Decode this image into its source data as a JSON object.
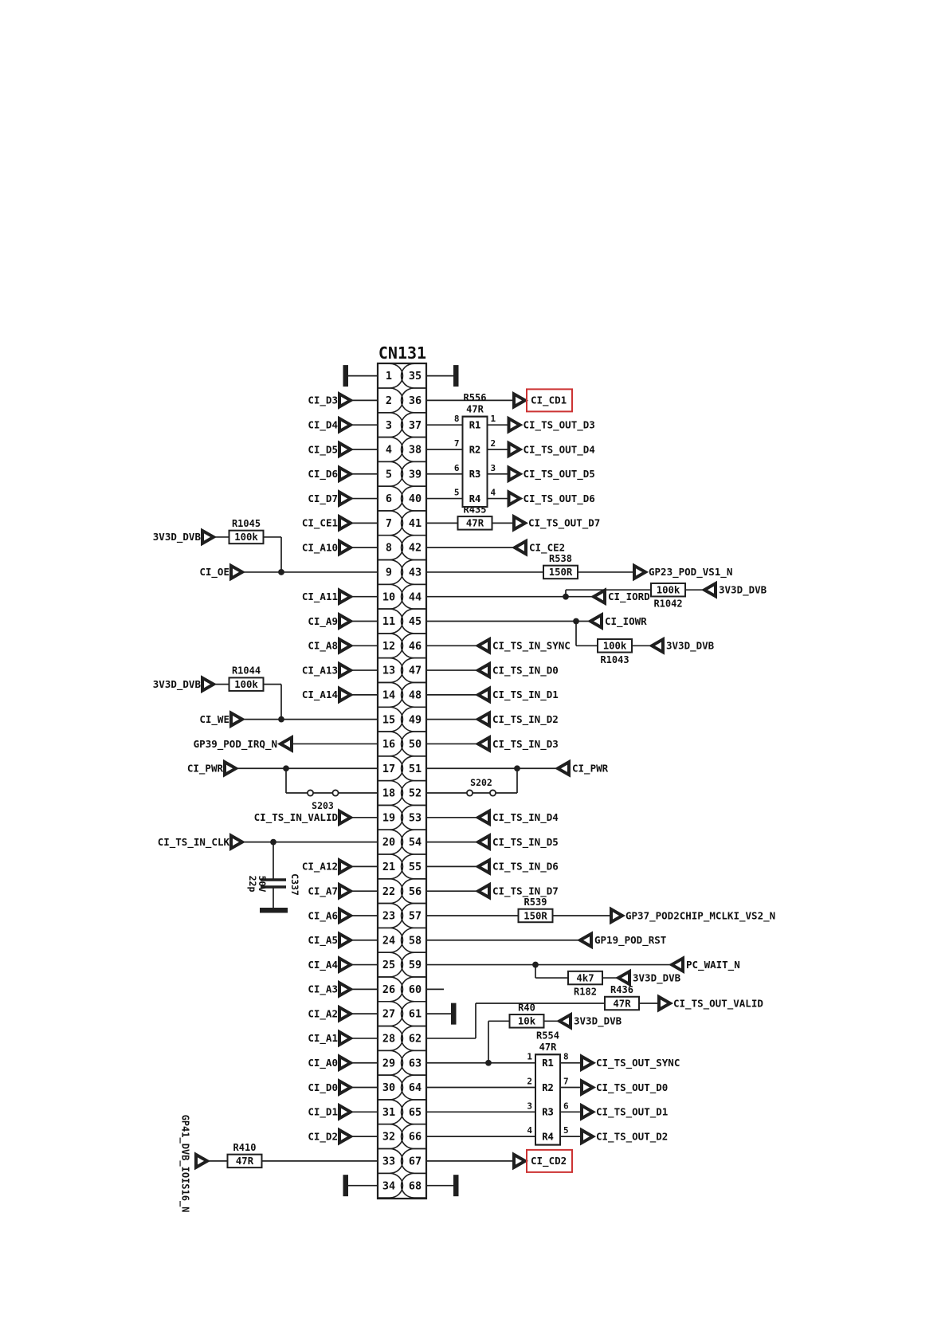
{
  "title": "CN131",
  "colors": {
    "line": "#1f1f1f",
    "text": "#101010",
    "highlight": "#cc3333",
    "background": "#ffffff"
  },
  "connector": {
    "name": "CN131",
    "left_pins": [
      1,
      2,
      3,
      4,
      5,
      6,
      7,
      8,
      9,
      10,
      11,
      12,
      13,
      14,
      15,
      16,
      17,
      18,
      19,
      20,
      21,
      22,
      23,
      24,
      25,
      26,
      27,
      28,
      29,
      30,
      31,
      32,
      33,
      34
    ],
    "right_pins": [
      35,
      36,
      37,
      38,
      39,
      40,
      41,
      42,
      43,
      44,
      45,
      46,
      47,
      48,
      49,
      50,
      51,
      52,
      53,
      54,
      55,
      56,
      57,
      58,
      59,
      60,
      61,
      62,
      63,
      64,
      65,
      66,
      67,
      68
    ]
  },
  "left_items": [
    {
      "pin": 1,
      "type": "term"
    },
    {
      "pin": 2,
      "type": "sig",
      "label": "CI_D3"
    },
    {
      "pin": 3,
      "type": "sig",
      "label": "CI_D4"
    },
    {
      "pin": 4,
      "type": "sig",
      "label": "CI_D5"
    },
    {
      "pin": 5,
      "type": "sig",
      "label": "CI_D6"
    },
    {
      "pin": 6,
      "type": "sig",
      "label": "CI_D7"
    },
    {
      "pin": 7,
      "type": "sig",
      "label": "CI_CE1"
    },
    {
      "pin": 8,
      "type": "sig",
      "label": "CI_A10"
    },
    {
      "pin": 9,
      "type": "sig_pull",
      "label": "CI_OE",
      "res_name": "R1045",
      "res_value": "100k",
      "rail": "3V3D_DVB"
    },
    {
      "pin": 10,
      "type": "sig",
      "label": "CI_A11"
    },
    {
      "pin": 11,
      "type": "sig",
      "label": "CI_A9"
    },
    {
      "pin": 12,
      "type": "sig",
      "label": "CI_A8"
    },
    {
      "pin": 13,
      "type": "sig",
      "label": "CI_A13"
    },
    {
      "pin": 14,
      "type": "sig",
      "label": "CI_A14"
    },
    {
      "pin": 15,
      "type": "sig_pull",
      "label": "CI_WE",
      "res_name": "R1044",
      "res_value": "100k",
      "rail": "3V3D_DVB"
    },
    {
      "pin": 16,
      "type": "sig_out",
      "label": "GP39_POD_IRQ_N"
    },
    {
      "pin": 17,
      "type": "sig_jumper",
      "label": "CI_PWR",
      "jumper": "S203"
    },
    {
      "pin": 19,
      "type": "sig",
      "label": "CI_TS_IN_VALID"
    },
    {
      "pin": 20,
      "type": "sig_cap",
      "label": "CI_TS_IN_CLK",
      "cap_name": "C337",
      "cap_value": "22p",
      "cap_voltage": "50V"
    },
    {
      "pin": 21,
      "type": "sig",
      "label": "CI_A12"
    },
    {
      "pin": 22,
      "type": "sig",
      "label": "CI_A7"
    },
    {
      "pin": 23,
      "type": "sig",
      "label": "CI_A6"
    },
    {
      "pin": 24,
      "type": "sig",
      "label": "CI_A5"
    },
    {
      "pin": 25,
      "type": "sig",
      "label": "CI_A4"
    },
    {
      "pin": 26,
      "type": "sig",
      "label": "CI_A3"
    },
    {
      "pin": 27,
      "type": "sig",
      "label": "CI_A2"
    },
    {
      "pin": 28,
      "type": "sig",
      "label": "CI_A1"
    },
    {
      "pin": 29,
      "type": "sig",
      "label": "CI_A0"
    },
    {
      "pin": 30,
      "type": "sig",
      "label": "CI_D0"
    },
    {
      "pin": 31,
      "type": "sig",
      "label": "CI_D1"
    },
    {
      "pin": 32,
      "type": "sig",
      "label": "CI_D2"
    },
    {
      "pin": 33,
      "type": "sig_series_vert",
      "label": "GP41_DVB_IOIS16_N",
      "res_name": "R410",
      "res_value": "47R"
    },
    {
      "pin": 34,
      "type": "term"
    }
  ],
  "right_items": [
    {
      "pin": 35,
      "type": "term"
    },
    {
      "pin": 36,
      "type": "boxed_out",
      "label": "CI_CD1"
    },
    {
      "pin": 41,
      "type": "series_out2",
      "res_name": "R435",
      "res_value": "47R",
      "label": "CI_TS_OUT_D7"
    },
    {
      "pin": 42,
      "type": "sig_in",
      "label": "CI_CE2"
    },
    {
      "pin": 43,
      "type": "series_out",
      "res_name": "R538",
      "res_value": "150R",
      "label": "GP23_POD_VS1_N"
    },
    {
      "pin": 44,
      "type": "in_pull",
      "branch": "up",
      "label": "CI_IORD",
      "res_name": "R1042",
      "res_value": "100k",
      "rail": "3V3D_DVB"
    },
    {
      "pin": 45,
      "type": "in_pull",
      "branch": "down",
      "label": "CI_IOWR",
      "res_name": "R1043",
      "res_value": "100k",
      "rail": "3V3D_DVB"
    },
    {
      "pin": 46,
      "type": "sig_in_short",
      "label": "CI_TS_IN_SYNC"
    },
    {
      "pin": 47,
      "type": "sig_in_short",
      "label": "CI_TS_IN_D0"
    },
    {
      "pin": 48,
      "type": "sig_in_short",
      "label": "CI_TS_IN_D1"
    },
    {
      "pin": 49,
      "type": "sig_in_short",
      "label": "CI_TS_IN_D2"
    },
    {
      "pin": 50,
      "type": "sig_in_short",
      "label": "CI_TS_IN_D3"
    },
    {
      "pin": 51,
      "type": "in_jumper",
      "label": "CI_PWR",
      "jumper": "S202"
    },
    {
      "pin": 53,
      "type": "sig_in_short",
      "label": "CI_TS_IN_D4"
    },
    {
      "pin": 54,
      "type": "sig_in_short",
      "label": "CI_TS_IN_D5"
    },
    {
      "pin": 55,
      "type": "sig_in_short",
      "label": "CI_TS_IN_D6"
    },
    {
      "pin": 56,
      "type": "sig_in_short",
      "label": "CI_TS_IN_D7"
    },
    {
      "pin": 57,
      "type": "series_out",
      "res_name": "R539",
      "res_value": "150R",
      "label": "GP37_POD2CHIP_MCLKI_VS2_N"
    },
    {
      "pin": 58,
      "type": "sig_in",
      "label": "GP19_POD_RST"
    },
    {
      "pin": 59,
      "type": "in_pull_wait",
      "label": "PC_WAIT_N",
      "res_name": "R182",
      "res_value": "4k7",
      "rail": "3V3D_DVB"
    },
    {
      "pin": 60,
      "type": "stub"
    },
    {
      "pin": 61,
      "type": "term_right"
    },
    {
      "pin": 62,
      "type": "route_up_series",
      "res_name": "R436",
      "res_value": "47R",
      "label": "CI_TS_OUT_VALID"
    },
    {
      "pin": 67,
      "type": "boxed_out",
      "label": "CI_CD2"
    },
    {
      "pin": 68,
      "type": "term"
    }
  ],
  "packs": [
    {
      "name": "R556",
      "value": "47R",
      "first_pin": 37,
      "elements": [
        "R1",
        "R2",
        "R3",
        "R4"
      ],
      "in_pins": [
        "8",
        "7",
        "6",
        "5"
      ],
      "out_pins": [
        "1",
        "2",
        "3",
        "4"
      ],
      "labels": [
        "CI_TS_OUT_D3",
        "CI_TS_OUT_D4",
        "CI_TS_OUT_D5",
        "CI_TS_OUT_D6"
      ]
    },
    {
      "name": "R554",
      "value": "47R",
      "first_pin": 63,
      "elements": [
        "R1",
        "R2",
        "R3",
        "R4"
      ],
      "in_pins": [
        "1",
        "2",
        "3",
        "4"
      ],
      "out_pins": [
        "8",
        "7",
        "6",
        "5"
      ],
      "labels": [
        "CI_TS_OUT_SYNC",
        "CI_TS_OUT_D0",
        "CI_TS_OUT_D1",
        "CI_TS_OUT_D2"
      ]
    }
  ],
  "extras": {
    "r40": {
      "name": "R40",
      "value": "10k",
      "rail": "3V3D_DVB",
      "taps_pin": 63
    }
  }
}
